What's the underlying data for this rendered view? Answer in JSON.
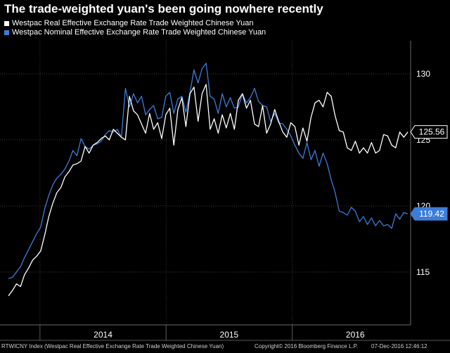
{
  "title": "The trade-weighted yuan's been going nowhere recently",
  "legend": [
    {
      "label": "Westpac Real Effective Exchange Rate Trade Weighted Chinese Yuan",
      "color": "#ffffff"
    },
    {
      "label": "Westpac Nominal Effective Exchange Rate Trade Weighted Chinese Yuan",
      "color": "#3b7dd8"
    }
  ],
  "footer": {
    "left": "RTWICNY Index (Westpac Real Effective Exchange Rate Trade Weighted Chinese Yuan)",
    "center": "Copyright© 2016 Bloomberg Finance L.P.",
    "right": "07-Dec-2016 12:46:12"
  },
  "chart_data": {
    "type": "line",
    "x_start": "2013-10",
    "x_end": "2016-12",
    "x_ticks": [
      "2014",
      "2015",
      "2016"
    ],
    "y_ticks": [
      115,
      120,
      125,
      130
    ],
    "ylim": [
      111,
      132.5
    ],
    "grid": true,
    "legend_position": "top-left",
    "series": [
      {
        "name": "Westpac Real Effective Exchange Rate Trade Weighted Chinese Yuan",
        "color": "#ffffff",
        "last_value": "125.56",
        "values": [
          113.2,
          113.6,
          114.1,
          113.9,
          114.8,
          115.3,
          115.9,
          116.2,
          116.6,
          117.8,
          119.2,
          120.2,
          121.0,
          121.4,
          122.2,
          122.6,
          123.1,
          123.2,
          123.4,
          124.5,
          124.0,
          124.6,
          124.8,
          125.1,
          125.3,
          125.0,
          125.8,
          125.5,
          125.2,
          125.0,
          128.3,
          127.2,
          126.9,
          126.2,
          125.5,
          127.0,
          125.8,
          126.3,
          125.1,
          126.9,
          127.4,
          124.6,
          127.3,
          128.2,
          126.0,
          128.5,
          129.0,
          126.4,
          128.5,
          129.2,
          125.8,
          126.6,
          125.5,
          126.9,
          125.9,
          127.0,
          125.8,
          128.0,
          128.5,
          127.4,
          128.0,
          126.2,
          126.0,
          127.6,
          125.5,
          126.2,
          127.3,
          126.4,
          125.6,
          125.2,
          126.3,
          126.0,
          124.6,
          125.9,
          124.9,
          126.7,
          127.8,
          128.0,
          127.5,
          128.6,
          128.3,
          126.8,
          125.7,
          125.6,
          124.4,
          124.2,
          124.9,
          124.0,
          124.4,
          124.0,
          124.8,
          124.0,
          124.2,
          125.4,
          125.3,
          124.6,
          124.4,
          125.6,
          125.2,
          125.6
        ]
      },
      {
        "name": "Westpac Nominal Effective Exchange Rate Trade Weighted Chinese Yuan",
        "color": "#3b7dd8",
        "last_value": "119.42",
        "values": [
          114.5,
          114.6,
          115.0,
          115.4,
          116.1,
          116.7,
          117.3,
          117.9,
          118.4,
          119.8,
          120.8,
          121.6,
          122.1,
          122.4,
          122.8,
          123.4,
          124.2,
          123.8,
          125.1,
          124.5,
          124.3,
          124.6,
          124.7,
          124.9,
          125.4,
          125.7,
          125.6,
          125.8,
          125.2,
          128.9,
          127.5,
          128.5,
          127.8,
          128.3,
          126.9,
          127.3,
          127.6,
          126.6,
          126.7,
          128.3,
          128.6,
          127.0,
          128.1,
          128.3,
          127.1,
          128.6,
          130.3,
          129.3,
          130.4,
          130.8,
          128.3,
          128.1,
          127.0,
          128.5,
          127.5,
          128.2,
          127.4,
          127.5,
          128.5,
          127.8,
          128.2,
          128.9,
          127.9,
          127.6,
          127.5,
          126.4,
          127.0,
          126.3,
          126.2,
          125.8,
          125.3,
          124.6,
          124.0,
          123.6,
          124.8,
          123.5,
          124.2,
          123.0,
          124.0,
          123.2,
          122.0,
          121.0,
          119.6,
          119.5,
          119.3,
          119.9,
          119.6,
          118.8,
          119.2,
          118.6,
          119.1,
          118.5,
          118.9,
          118.5,
          118.6,
          118.3,
          119.4,
          119.0,
          119.5,
          119.4
        ]
      }
    ]
  }
}
